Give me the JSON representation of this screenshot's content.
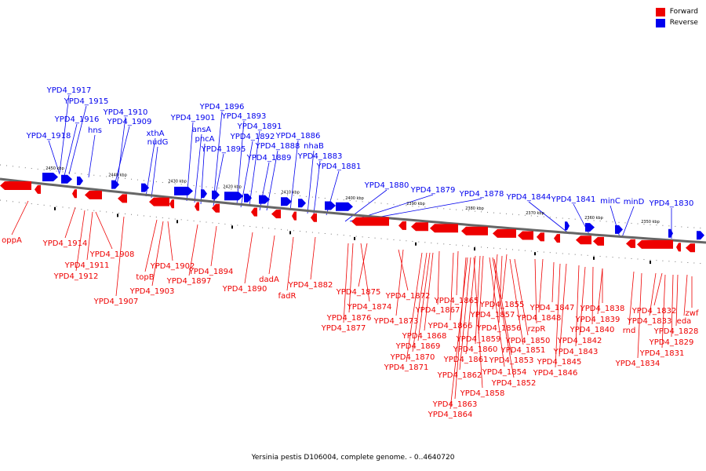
{
  "legend": {
    "forward_label": "Forward",
    "reverse_label": "Reverse",
    "forward_color": "#ee0000",
    "reverse_color": "#0000ee"
  },
  "caption": "Yersinia pestis D106004, complete genome. - 0..4640720",
  "scale_labels": [
    "2450 kbp",
    "2440 kbp",
    "2430 kbp",
    "2420 kbp",
    "2410 kbp",
    "2400 kbp",
    "2390 kbp",
    "2380 kbp",
    "2370 kbp",
    "2360 kbp",
    "2350 kbp"
  ],
  "reverse_labels": [
    "YPD4_1917",
    "YPD4_1915",
    "YPD4_1916",
    "YPD4_1918",
    "hns",
    "YPD4_1910",
    "YPD4_1909",
    "xthA",
    "nudG",
    "YPD4_1896",
    "YPD4_1901",
    "YPD4_1893",
    "ansA",
    "pncA",
    "YPD4_1891",
    "YPD4_1895",
    "YPD4_1892",
    "YPD4_1886",
    "YPD4_1888",
    "YPD4_1889",
    "nhaB",
    "YPD4_1883",
    "YPD4_1881",
    "YPD4_1880",
    "YPD4_1879",
    "YPD4_1878",
    "YPD4_1844",
    "YPD4_1841",
    "minC",
    "minD",
    "YPD4_1830"
  ],
  "forward_labels": [
    "oppA",
    "YPD4_1914",
    "YPD4_1908",
    "YPD4_1911",
    "YPD4_1912",
    "YPD4_1907",
    "YPD4_1902",
    "topB",
    "YPD4_1903",
    "YPD4_1894",
    "YPD4_1897",
    "dadA",
    "YPD4_1890",
    "fadR",
    "YPD4_1882",
    "YPD4_1875",
    "YPD4_1874",
    "YPD4_1876",
    "YPD4_1877",
    "YPD4_1872",
    "YPD4_1873",
    "YPD4_1865",
    "YPD4_1867",
    "YPD4_1866",
    "YPD4_1868",
    "YPD4_1869",
    "YPD4_1870",
    "YPD4_1871",
    "YPD4_1855",
    "YPD4_1857",
    "YPD4_1856",
    "YPD4_1859",
    "YPD4_1860",
    "YPD4_1861",
    "YPD4_1862",
    "YPD4_1863",
    "YPD4_1864",
    "YPD4_1858",
    "YPD4_1854",
    "YPD4_1852",
    "YPD4_1853",
    "YPD4_1851",
    "YPD4_1850",
    "rzpR",
    "YPD4_1848",
    "YPD4_1847",
    "YPD4_1843",
    "YPD4_1845",
    "YPD4_1846",
    "YPD4_1842",
    "YPD4_1840",
    "YPD4_1839",
    "YPD4_1838",
    "rnd",
    "YPD4_1834",
    "YPD4_1833",
    "YPD4_1832",
    "YPD4_1831",
    "YPD4_1829",
    "YPD4_1828",
    "eda",
    "zwf"
  ]
}
